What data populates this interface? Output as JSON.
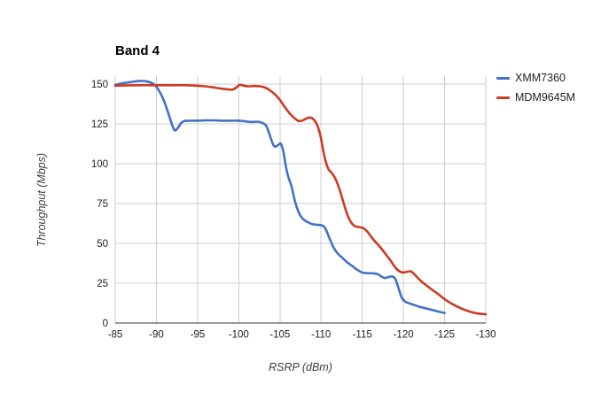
{
  "chart_data": {
    "type": "line",
    "title": "Band 4",
    "xlabel": "RSRP (dBm)",
    "ylabel": "Throughput (Mbps)",
    "xlim": [
      -85,
      -130
    ],
    "ylim": [
      0,
      155
    ],
    "x_ticks": [
      -85,
      -90,
      -95,
      -100,
      -105,
      -110,
      -115,
      -120,
      -125,
      -130
    ],
    "y_ticks": [
      0,
      25,
      50,
      75,
      100,
      125,
      150
    ],
    "grid": true,
    "legend_position": "right",
    "colors": {
      "gridline": "#cccccc",
      "axis_line": "#333333",
      "tick_label": "#222222",
      "axis_title": "#3d3d3d"
    },
    "series": [
      {
        "name": "XMM7360",
        "color": "#4372C4",
        "points": [
          [
            -85,
            149.5
          ],
          [
            -86,
            150.6
          ],
          [
            -87,
            151.4
          ],
          [
            -88,
            152
          ],
          [
            -88.7,
            151.8
          ],
          [
            -89.3,
            151
          ],
          [
            -89.8,
            149.5
          ],
          [
            -90.3,
            146
          ],
          [
            -90.8,
            141
          ],
          [
            -91.3,
            134
          ],
          [
            -91.8,
            126
          ],
          [
            -92.2,
            121
          ],
          [
            -92.6,
            122.5
          ],
          [
            -93,
            125.5
          ],
          [
            -93.4,
            126.8
          ],
          [
            -94,
            127
          ],
          [
            -95,
            127
          ],
          [
            -96,
            127.2
          ],
          [
            -97,
            127.2
          ],
          [
            -98,
            127
          ],
          [
            -99,
            127
          ],
          [
            -100,
            127
          ],
          [
            -100.8,
            126.6
          ],
          [
            -101.5,
            126.2
          ],
          [
            -102.2,
            126.4
          ],
          [
            -102.8,
            125.8
          ],
          [
            -103.3,
            124
          ],
          [
            -103.7,
            119
          ],
          [
            -104.1,
            113
          ],
          [
            -104.4,
            110.7
          ],
          [
            -104.8,
            111.8
          ],
          [
            -105.1,
            112.6
          ],
          [
            -105.4,
            108
          ],
          [
            -105.7,
            99
          ],
          [
            -106,
            92
          ],
          [
            -106.4,
            86
          ],
          [
            -106.8,
            77
          ],
          [
            -107.2,
            70.5
          ],
          [
            -107.6,
            66.5
          ],
          [
            -108,
            64.5
          ],
          [
            -108.5,
            63
          ],
          [
            -109,
            62
          ],
          [
            -109.6,
            61.6
          ],
          [
            -110.1,
            61.3
          ],
          [
            -110.5,
            59.5
          ],
          [
            -111,
            53.5
          ],
          [
            -111.5,
            47.5
          ],
          [
            -112,
            43.8
          ],
          [
            -112.6,
            40.8
          ],
          [
            -113.2,
            38
          ],
          [
            -113.8,
            35.7
          ],
          [
            -114.4,
            33.4
          ],
          [
            -115,
            31.7
          ],
          [
            -115.6,
            31.3
          ],
          [
            -116.2,
            31.2
          ],
          [
            -116.8,
            30.8
          ],
          [
            -117.3,
            29.3
          ],
          [
            -117.7,
            28.2
          ],
          [
            -118.1,
            28.7
          ],
          [
            -118.6,
            29.2
          ],
          [
            -119,
            27.8
          ],
          [
            -119.4,
            22
          ],
          [
            -119.8,
            15.8
          ],
          [
            -120.3,
            13.2
          ],
          [
            -120.9,
            12
          ],
          [
            -121.6,
            10.8
          ],
          [
            -122.4,
            9.6
          ],
          [
            -123.2,
            8.6
          ],
          [
            -124.1,
            7.4
          ],
          [
            -125,
            6.3
          ]
        ]
      },
      {
        "name": "MDM9645M",
        "color": "#CC3B22",
        "points": [
          [
            -85,
            149
          ],
          [
            -86.5,
            149.2
          ],
          [
            -88,
            149.3
          ],
          [
            -90,
            149.3
          ],
          [
            -92,
            149.3
          ],
          [
            -93.5,
            149.3
          ],
          [
            -94.8,
            149
          ],
          [
            -95.8,
            148.6
          ],
          [
            -96.8,
            148
          ],
          [
            -97.8,
            147.2
          ],
          [
            -98.6,
            146.7
          ],
          [
            -99.2,
            146.5
          ],
          [
            -99.7,
            147.8
          ],
          [
            -100.1,
            149.5
          ],
          [
            -100.6,
            149
          ],
          [
            -101.2,
            148.6
          ],
          [
            -101.9,
            148.8
          ],
          [
            -102.6,
            148.6
          ],
          [
            -103.2,
            147.8
          ],
          [
            -103.8,
            146
          ],
          [
            -104.4,
            143.5
          ],
          [
            -105,
            140
          ],
          [
            -105.6,
            135.5
          ],
          [
            -106.2,
            131.5
          ],
          [
            -106.8,
            128.5
          ],
          [
            -107.3,
            126.7
          ],
          [
            -107.8,
            127.3
          ],
          [
            -108.3,
            128.6
          ],
          [
            -108.7,
            129
          ],
          [
            -109.1,
            127.8
          ],
          [
            -109.5,
            124.5
          ],
          [
            -109.9,
            118
          ],
          [
            -110.2,
            110
          ],
          [
            -110.5,
            102.5
          ],
          [
            -110.9,
            96.5
          ],
          [
            -111.3,
            94.2
          ],
          [
            -111.7,
            91
          ],
          [
            -112.1,
            86
          ],
          [
            -112.5,
            79.5
          ],
          [
            -112.9,
            72.5
          ],
          [
            -113.3,
            66.5
          ],
          [
            -113.7,
            62.8
          ],
          [
            -114.1,
            60.8
          ],
          [
            -114.6,
            60.2
          ],
          [
            -115.1,
            59.6
          ],
          [
            -115.6,
            57.5
          ],
          [
            -116.1,
            54
          ],
          [
            -116.6,
            51
          ],
          [
            -117.2,
            47.5
          ],
          [
            -117.8,
            43.5
          ],
          [
            -118.4,
            39.5
          ],
          [
            -119,
            35
          ],
          [
            -119.5,
            32.5
          ],
          [
            -120,
            31.7
          ],
          [
            -120.5,
            32.2
          ],
          [
            -120.9,
            32.4
          ],
          [
            -121.4,
            30.2
          ],
          [
            -122,
            27
          ],
          [
            -122.7,
            24
          ],
          [
            -123.4,
            21.2
          ],
          [
            -124.1,
            18.6
          ],
          [
            -124.8,
            15.8
          ],
          [
            -125.5,
            13.2
          ],
          [
            -126.2,
            11.2
          ],
          [
            -127,
            9.2
          ],
          [
            -127.8,
            7.6
          ],
          [
            -128.6,
            6.4
          ],
          [
            -129.3,
            5.8
          ],
          [
            -130,
            5.5
          ]
        ]
      }
    ]
  }
}
